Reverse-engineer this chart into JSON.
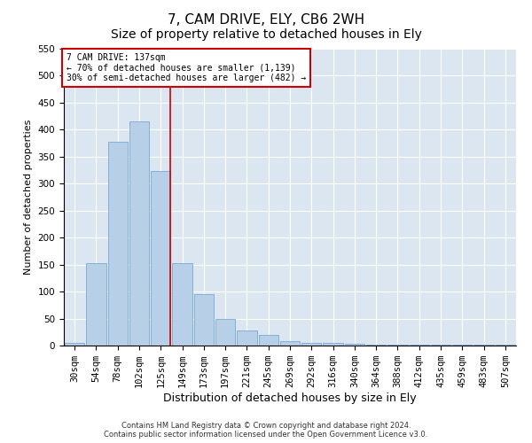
{
  "title": "7, CAM DRIVE, ELY, CB6 2WH",
  "subtitle": "Size of property relative to detached houses in Ely",
  "xlabel": "Distribution of detached houses by size in Ely",
  "ylabel": "Number of detached properties",
  "categories": [
    "30sqm",
    "54sqm",
    "78sqm",
    "102sqm",
    "125sqm",
    "149sqm",
    "173sqm",
    "197sqm",
    "221sqm",
    "245sqm",
    "269sqm",
    "292sqm",
    "316sqm",
    "340sqm",
    "364sqm",
    "388sqm",
    "412sqm",
    "435sqm",
    "459sqm",
    "483sqm",
    "507sqm"
  ],
  "values": [
    5,
    152,
    378,
    415,
    323,
    152,
    95,
    50,
    28,
    20,
    8,
    5,
    5,
    3,
    2,
    1,
    2,
    1,
    2,
    1,
    2
  ],
  "bar_color": "#b8cfe8",
  "bar_edge_color": "#7aaad4",
  "red_line_index": 4,
  "annotation_line1": "7 CAM DRIVE: 137sqm",
  "annotation_line2": "← 70% of detached houses are smaller (1,139)",
  "annotation_line3": "30% of semi-detached houses are larger (482) →",
  "annotation_box_color": "#ffffff",
  "annotation_box_edge": "#cc0000",
  "red_line_color": "#cc0000",
  "ylim": [
    0,
    550
  ],
  "yticks": [
    0,
    50,
    100,
    150,
    200,
    250,
    300,
    350,
    400,
    450,
    500,
    550
  ],
  "grid_color": "#ffffff",
  "background_color": "#dce6f0",
  "footer_line1": "Contains HM Land Registry data © Crown copyright and database right 2024.",
  "footer_line2": "Contains public sector information licensed under the Open Government Licence v3.0.",
  "title_fontsize": 11,
  "xlabel_fontsize": 9,
  "ylabel_fontsize": 8,
  "tick_fontsize": 7.5,
  "annot_fontsize": 7
}
